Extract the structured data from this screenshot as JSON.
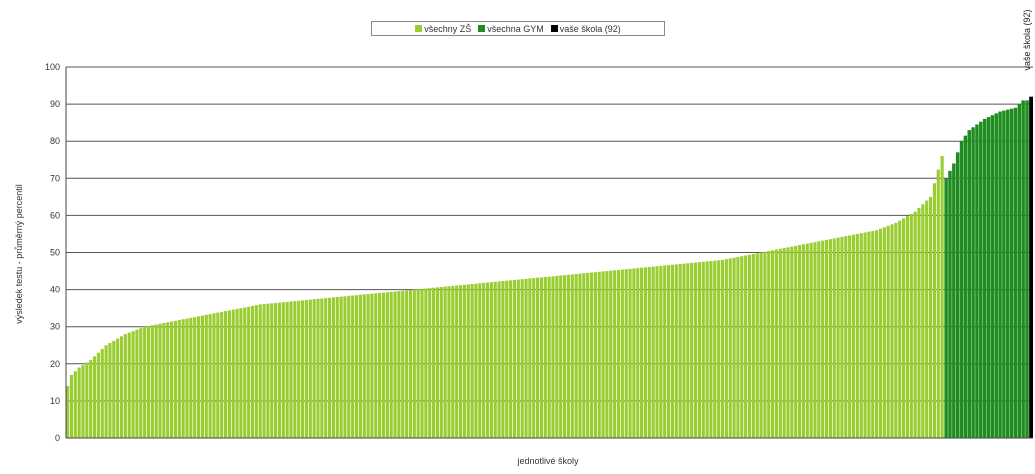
{
  "chart_data": {
    "type": "bar",
    "xlabel": "jednotlivé školy",
    "ylabel": "výsledek testu - průměrný percentil",
    "ylim": [
      0,
      100
    ],
    "yticks": [
      0,
      10,
      20,
      30,
      40,
      50,
      60,
      70,
      80,
      90,
      100
    ],
    "grid": true,
    "legend_position": "top-center",
    "series": [
      {
        "name": "všechny ZŠ",
        "color": "#9acd32"
      },
      {
        "name": "všechna GYM",
        "color": "#1e8c1e"
      },
      {
        "name": "vaše škola (92)",
        "color": "#000000"
      }
    ],
    "profile": {
      "zs_count": 228,
      "zs_values": [
        [
          0,
          14
        ],
        [
          1,
          17
        ],
        [
          3,
          19
        ],
        [
          6,
          21
        ],
        [
          10,
          25
        ],
        [
          15,
          28
        ],
        [
          20,
          30
        ],
        [
          30,
          32
        ],
        [
          40,
          34
        ],
        [
          50,
          36
        ],
        [
          60,
          37
        ],
        [
          70,
          38
        ],
        [
          80,
          39
        ],
        [
          90,
          40
        ],
        [
          100,
          41
        ],
        [
          110,
          42
        ],
        [
          120,
          43
        ],
        [
          130,
          44
        ],
        [
          140,
          45
        ],
        [
          150,
          46
        ],
        [
          160,
          47
        ],
        [
          170,
          48
        ],
        [
          180,
          50
        ],
        [
          190,
          52
        ],
        [
          200,
          54
        ],
        [
          210,
          56
        ],
        [
          215,
          58
        ],
        [
          220,
          61
        ],
        [
          224,
          65
        ],
        [
          227,
          76
        ]
      ],
      "gym_values": [
        [
          0,
          70
        ],
        [
          2,
          74
        ],
        [
          4,
          80
        ],
        [
          6,
          83
        ],
        [
          10,
          86
        ],
        [
          14,
          88
        ],
        [
          18,
          89
        ],
        [
          20,
          91
        ]
      ],
      "gym_count": 22,
      "school_value": 92
    },
    "annotation": "vaše škola (92)"
  }
}
